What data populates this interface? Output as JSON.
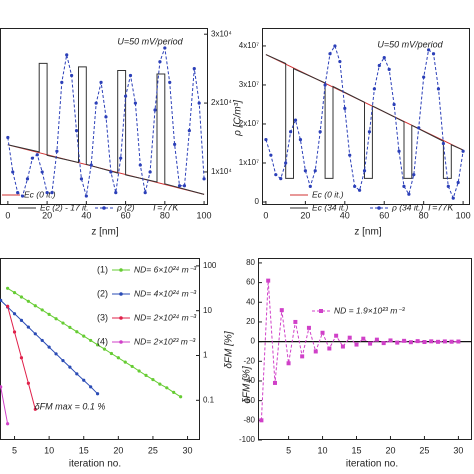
{
  "chart_data": [
    {
      "type": "line",
      "xlabel": "z [nm]",
      "annotations": [
        "U=50 mV/period",
        "T=77K"
      ],
      "xlim": [
        -4,
        102
      ],
      "xticks": [
        0,
        20,
        40,
        60,
        80,
        100
      ],
      "ylim": [
        0,
        1
      ],
      "y2lim": [
        5200,
        30900
      ],
      "y2ticks": [
        {
          "value": 10000,
          "label": "1x10⁴"
        },
        {
          "value": 20000,
          "label": "2x10⁴"
        },
        {
          "value": 30000,
          "label": "3x10⁴"
        }
      ],
      "series": [
        {
          "name": "Ec (0 it.)",
          "color": "#d03030",
          "x": [
            0,
            100
          ],
          "values": [
            0.34,
            0.06
          ]
        },
        {
          "name": "Ec (2) - 17 it.",
          "color": "#333333",
          "x": [
            0,
            16,
            16,
            20,
            20,
            36,
            36,
            40,
            40,
            56,
            56,
            60,
            60,
            76,
            76,
            80,
            80,
            100
          ],
          "values": [
            0.34,
            0.3,
            0.8,
            0.8,
            0.28,
            0.24,
            0.78,
            0.78,
            0.23,
            0.18,
            0.76,
            0.76,
            0.17,
            0.13,
            0.74,
            0.74,
            0.12,
            0.06
          ]
        },
        {
          "name": "ρ (2)",
          "color": "#2b3fb8",
          "axis": "y2",
          "dash": true,
          "marker": "o",
          "x": [
            0,
            2.5,
            5,
            7.5,
            10,
            12.5,
            15,
            17.5,
            20,
            22.5,
            25,
            27.5,
            30,
            32.5,
            35,
            37.5,
            40,
            42.5,
            45,
            47.5,
            50,
            52.5,
            55,
            57.5,
            60,
            62.5,
            65,
            67.5,
            70,
            72.5,
            75,
            77.5,
            80,
            82.5,
            85,
            87.5,
            90,
            92.5,
            95,
            97.5,
            100
          ],
          "values": [
            15000,
            10000,
            7000,
            6500,
            9000,
            12000,
            12500,
            10000,
            7000,
            7000,
            13000,
            23000,
            27000,
            24000,
            16000,
            9000,
            6500,
            11000,
            20000,
            23000,
            18000,
            10000,
            7000,
            12000,
            21000,
            24000,
            20000,
            11000,
            7000,
            10000,
            19000,
            26000,
            28000,
            23000,
            14000,
            8000,
            8000,
            16000,
            25000,
            20000,
            9000
          ]
        }
      ]
    },
    {
      "type": "line",
      "xlabel": "z [nm]",
      "ylabel": "ρ [C/m³]",
      "annotations": [
        "U=50 mV/period",
        "T=77K"
      ],
      "xlim": [
        -2,
        103.5
      ],
      "xticks": [
        0,
        20,
        40,
        60,
        80,
        100
      ],
      "ylim": [
        -770000,
        44600000
      ],
      "yticks": [
        0,
        {
          "value": 10000000,
          "label": "1x10⁷"
        },
        {
          "value": 20000000,
          "label": "2x10⁷"
        },
        {
          "value": 30000000,
          "label": "3x10⁷"
        },
        {
          "value": 40000000,
          "label": "4x10⁷"
        }
      ],
      "y2lim": [
        0,
        1
      ],
      "series": [
        {
          "name": "Ec (0 it.)",
          "color": "#d03030",
          "axis": "y2",
          "x": [
            0,
            100
          ],
          "values": [
            0.85,
            0.31
          ]
        },
        {
          "name": "Ec (34 it.)",
          "color": "#333333",
          "axis": "y2",
          "x": [
            0,
            10,
            10,
            14,
            14,
            30,
            30,
            34,
            34,
            50,
            50,
            54,
            54,
            70,
            70,
            74,
            74,
            90,
            90,
            94,
            94,
            100
          ],
          "values": [
            0.85,
            0.8,
            0.15,
            0.15,
            0.77,
            0.69,
            0.15,
            0.15,
            0.67,
            0.58,
            0.15,
            0.15,
            0.56,
            0.47,
            0.15,
            0.15,
            0.45,
            0.36,
            0.15,
            0.15,
            0.34,
            0.31
          ]
        },
        {
          "name": "ρ (34 it.)",
          "color": "#2b3fb8",
          "dash": true,
          "marker": "o",
          "x": [
            0,
            2.5,
            5,
            7.5,
            10,
            12.5,
            15,
            17.5,
            20,
            22.5,
            25,
            27.5,
            30,
            32.5,
            35,
            37.5,
            40,
            42.5,
            45,
            47.5,
            50,
            52.5,
            55,
            57.5,
            60,
            62.5,
            65,
            67.5,
            70,
            72.5,
            75,
            77.5,
            80,
            82.5,
            85,
            87.5,
            90,
            92.5,
            95,
            97.5,
            100
          ],
          "values": [
            16000000,
            12000000,
            7000000,
            6000000,
            10000000,
            18000000,
            21000000,
            16000000,
            8000000,
            4000000,
            8000000,
            18000000,
            30000000,
            38000000,
            40000000,
            36000000,
            24000000,
            12000000,
            4000000,
            3000000,
            8000000,
            18000000,
            29000000,
            35000000,
            37000000,
            34000000,
            25000000,
            13000000,
            4000000,
            2000000,
            7000000,
            19000000,
            32000000,
            39000000,
            38000000,
            29000000,
            15000000,
            4000000,
            1000000,
            5000000,
            13000000
          ]
        }
      ]
    },
    {
      "type": "line",
      "xlabel": "iteration no.",
      "ylabel": "δFM [%]",
      "annotations": [
        "δFM max = 0.1 %"
      ],
      "log": true,
      "xlim": [
        2.9,
        31.8
      ],
      "xticks": [
        5,
        10,
        15,
        20,
        25,
        30
      ],
      "ylim": [
        0.013,
        150
      ],
      "yticks": [
        0.1,
        1,
        10,
        100
      ],
      "series": [
        {
          "key": "(1)",
          "name": "ND= 6×10²⁴ m⁻³",
          "color": "#66cc33",
          "marker": "o",
          "x": [
            4,
            5,
            6,
            7,
            8,
            9,
            10,
            11,
            12,
            13,
            14,
            15,
            16,
            17,
            18,
            19,
            20,
            21,
            22,
            23,
            24,
            25,
            26,
            27,
            28,
            29
          ],
          "values": [
            31.6,
            25.3,
            20.2,
            16.2,
            12.9,
            10.4,
            8.28,
            6.62,
            5.3,
            4.24,
            3.39,
            2.71,
            2.17,
            1.73,
            1.39,
            1.11,
            0.89,
            0.71,
            0.57,
            0.45,
            0.36,
            0.29,
            0.23,
            0.19,
            0.15,
            0.12
          ]
        },
        {
          "key": "(2)",
          "name": "ND= 4×10²⁴ m⁻³",
          "color": "#2a4bb5",
          "marker": "o",
          "x": [
            3,
            4,
            5,
            6,
            7,
            8,
            9,
            10,
            11,
            12,
            13,
            14,
            15,
            16,
            17
          ],
          "values": [
            17,
            12.1,
            8.55,
            6.07,
            4.31,
            3.05,
            2.17,
            1.54,
            1.09,
            0.77,
            0.55,
            0.39,
            0.28,
            0.2,
            0.14
          ]
        },
        {
          "key": "(3)",
          "name": "ND= 2×10²⁴ m⁻³",
          "color": "#e0204a",
          "marker": "o",
          "x": [
            4,
            5,
            6,
            7,
            8
          ],
          "values": [
            12.6,
            3.35,
            0.89,
            0.24,
            0.063
          ]
        },
        {
          "key": "(4)",
          "name": "ND= 2×10²³ m⁻³",
          "color": "#d040c8",
          "marker": "o",
          "x": [
            3,
            4
          ],
          "values": [
            0.2,
            0.03
          ]
        }
      ]
    },
    {
      "type": "line",
      "xlabel": "iteration no.",
      "ylabel": "δFM [%]",
      "zero_line": true,
      "xlim": [
        0.5,
        32
      ],
      "xticks": [
        5,
        10,
        15,
        20,
        25,
        30
      ],
      "ylim": [
        -100,
        85
      ],
      "yticks": [
        -100,
        -80,
        -60,
        -40,
        -20,
        0,
        20,
        40,
        60,
        80
      ],
      "series": [
        {
          "name": "ND = 1.9×10²³ m⁻³",
          "color": "#d040c8",
          "dash": true,
          "marker": "s",
          "x": [
            1,
            2,
            3,
            4,
            5,
            6,
            7,
            8,
            9,
            10,
            11,
            12,
            13,
            14,
            15,
            16,
            17,
            18,
            19,
            20,
            21,
            22,
            23,
            24,
            25,
            26,
            27,
            28,
            29,
            30
          ],
          "values": [
            -80,
            62,
            -42,
            32,
            -22,
            20,
            -15,
            14,
            -10,
            9,
            -7,
            6,
            -5,
            4,
            -3,
            3,
            -2,
            2,
            -1.5,
            1.2,
            -1,
            0.8,
            -0.6,
            0.5,
            -0.4,
            0.3,
            -0.2,
            0.2,
            -0.1,
            0.1
          ]
        }
      ]
    }
  ]
}
